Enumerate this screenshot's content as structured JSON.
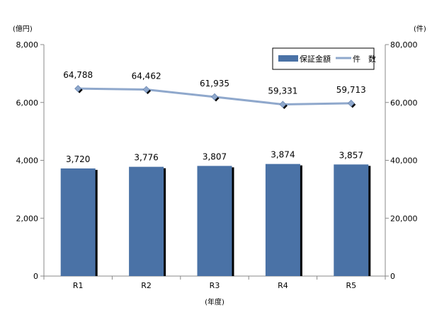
{
  "chart_data": {
    "type": "bar",
    "categories": [
      "R1",
      "R2",
      "R3",
      "R4",
      "R5"
    ],
    "xlabel": "(年度)",
    "left_axis": {
      "unit": "(億円)",
      "ylim": [
        0,
        8000
      ],
      "ticks": [
        "0",
        "2,000",
        "4,000",
        "6,000",
        "8,000"
      ],
      "tick_values": [
        0,
        2000,
        4000,
        6000,
        8000
      ]
    },
    "right_axis": {
      "unit": "(件)",
      "ylim": [
        0,
        80000
      ],
      "ticks": [
        "0",
        "20,000",
        "40,000",
        "60,000",
        "80,000"
      ],
      "tick_values": [
        0,
        20000,
        40000,
        60000,
        80000
      ]
    },
    "series": [
      {
        "name": "保証金額",
        "kind": "bar",
        "axis": "left",
        "values": [
          3720,
          3776,
          3807,
          3874,
          3857
        ],
        "labels": [
          "3,720",
          "3,776",
          "3,807",
          "3,874",
          "3,857"
        ],
        "color": "#4a72a6"
      },
      {
        "name": "件　数",
        "kind": "line",
        "axis": "right",
        "values": [
          64788,
          64462,
          61935,
          59331,
          59713
        ],
        "labels": [
          "64,788",
          "64,462",
          "61,935",
          "59,331",
          "59,713"
        ],
        "color": "#8fa8cc"
      }
    ],
    "legend": "top-right",
    "grid": false
  }
}
